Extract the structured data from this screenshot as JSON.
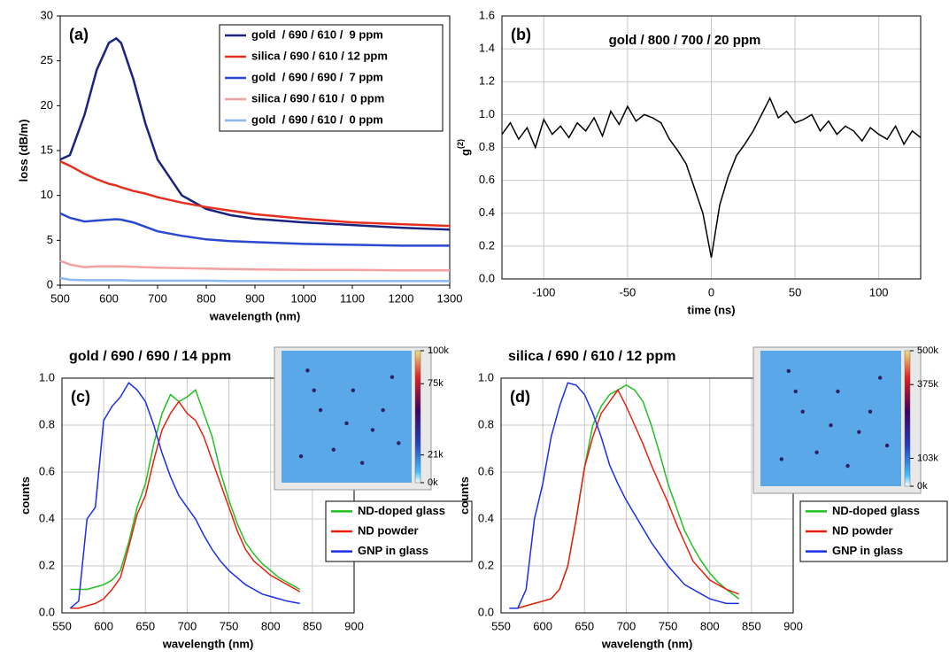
{
  "chart_data": [
    {
      "type": "line",
      "panel_label": "(a)",
      "x_label": "wavelength (nm)",
      "y_label": "loss (dB/m)",
      "xlim": [
        500,
        1300
      ],
      "ylim": [
        0,
        30
      ],
      "xticks": [
        500,
        600,
        700,
        800,
        900,
        1000,
        1100,
        1200,
        1300
      ],
      "yticks": [
        0,
        5,
        10,
        15,
        20,
        25,
        30
      ],
      "grid": false,
      "legend": "upper-right",
      "x": [
        500,
        520,
        550,
        575,
        600,
        615,
        625,
        650,
        675,
        700,
        750,
        800,
        850,
        900,
        1000,
        1100,
        1200,
        1300
      ],
      "series": [
        {
          "name": "gold  / 690 / 610 /  9 ppm",
          "color": "#1a237e",
          "values": [
            14,
            14.5,
            19,
            24,
            27,
            27.5,
            27,
            23,
            18,
            14,
            10,
            8.5,
            7.8,
            7.4,
            7,
            6.7,
            6.4,
            6.2
          ]
        },
        {
          "name": "silica / 690 / 610 / 12 ppm",
          "color": "#e53020",
          "values": [
            13.8,
            13.3,
            12.4,
            11.8,
            11.3,
            11.1,
            10.9,
            10.5,
            10.2,
            9.8,
            9.2,
            8.7,
            8.3,
            7.9,
            7.4,
            7,
            6.8,
            6.6
          ]
        },
        {
          "name": "gold  / 690 / 690 /  7 ppm",
          "color": "#2a48d0",
          "values": [
            8,
            7.5,
            7.1,
            7.2,
            7.3,
            7.35,
            7.3,
            7,
            6.5,
            6,
            5.5,
            5.1,
            4.9,
            4.8,
            4.6,
            4.5,
            4.4,
            4.4
          ]
        },
        {
          "name": "silica / 690 / 610 /  0 ppm",
          "color": "#f4a0a0",
          "values": [
            2.7,
            2.3,
            2.0,
            2.1,
            2.1,
            2.1,
            2.1,
            2.05,
            2.0,
            1.95,
            1.9,
            1.85,
            1.8,
            1.75,
            1.7,
            1.7,
            1.65,
            1.65
          ]
        },
        {
          "name": "gold  / 690 / 610 /  0 ppm",
          "color": "#8ab8f0",
          "values": [
            0.8,
            0.6,
            0.55,
            0.55,
            0.55,
            0.55,
            0.55,
            0.5,
            0.5,
            0.5,
            0.5,
            0.5,
            0.45,
            0.45,
            0.45,
            0.45,
            0.45,
            0.45
          ]
        }
      ]
    },
    {
      "type": "line",
      "panel_label": "(b)",
      "title": "gold / 800 / 700 / 20 ppm",
      "x_label": "time (ns)",
      "y_label": "g",
      "y_label_superscript": "(2)",
      "xlim": [
        -125,
        125
      ],
      "ylim": [
        0,
        1.6
      ],
      "xticks": [
        -100,
        -50,
        0,
        50,
        100
      ],
      "yticks": [
        {
          "value": 0,
          "label": "0.0"
        },
        {
          "value": 0.2,
          "label": "0.2"
        },
        {
          "value": 0.4,
          "label": "0.4"
        },
        {
          "value": 0.6,
          "label": "0.6"
        },
        {
          "value": 0.8,
          "label": "0.8"
        },
        {
          "value": 1,
          "label": "1.0"
        },
        {
          "value": 1.2,
          "label": "1.2"
        },
        {
          "value": 1.4,
          "label": "1.4"
        },
        {
          "value": 1.6,
          "label": "1.6"
        }
      ],
      "grid": true,
      "x": [
        -125,
        -120,
        -115,
        -110,
        -105,
        -100,
        -95,
        -90,
        -85,
        -80,
        -75,
        -70,
        -65,
        -60,
        -55,
        -50,
        -45,
        -40,
        -35,
        -30,
        -25,
        -20,
        -15,
        -10,
        -5,
        0,
        5,
        10,
        15,
        20,
        25,
        30,
        35,
        40,
        45,
        50,
        55,
        60,
        65,
        70,
        75,
        80,
        85,
        90,
        95,
        100,
        105,
        110,
        115,
        120,
        125
      ],
      "series": [
        {
          "color": "#000000",
          "values": [
            0.88,
            0.95,
            0.85,
            0.92,
            0.8,
            0.97,
            0.88,
            0.93,
            0.86,
            0.95,
            0.9,
            0.98,
            0.87,
            1.02,
            0.94,
            1.05,
            0.96,
            1.0,
            0.98,
            0.95,
            0.85,
            0.78,
            0.7,
            0.55,
            0.4,
            0.13,
            0.45,
            0.62,
            0.75,
            0.82,
            0.9,
            1.0,
            1.1,
            0.98,
            1.02,
            0.95,
            0.97,
            1.0,
            0.9,
            0.96,
            0.88,
            0.93,
            0.9,
            0.84,
            0.92,
            0.88,
            0.85,
            0.93,
            0.82,
            0.9,
            0.86
          ]
        }
      ]
    },
    {
      "type": "line",
      "panel_label": "(c)",
      "title": "gold / 690 / 690 / 14 ppm",
      "x_label": "wavelength (nm)",
      "y_label": "counts",
      "xlim": [
        550,
        900
      ],
      "ylim": [
        0,
        1
      ],
      "xticks": [
        550,
        600,
        650,
        700,
        750,
        800,
        850,
        900
      ],
      "yticks": [
        {
          "value": 0,
          "label": "0.0"
        },
        {
          "value": 0.2,
          "label": "0.2"
        },
        {
          "value": 0.4,
          "label": "0.4"
        },
        {
          "value": 0.6,
          "label": "0.6"
        },
        {
          "value": 0.8,
          "label": "0.8"
        },
        {
          "value": 1,
          "label": "1.0"
        }
      ],
      "grid": true,
      "legend": "lower-right",
      "inset": {
        "colorbar_lim": [
          0,
          100000
        ],
        "colorbar_ticks": [
          {
            "value": 100000,
            "label": "100k"
          },
          {
            "value": 75000,
            "label": "75k"
          },
          {
            "value": 21000,
            "label": "21k"
          },
          {
            "value": 0,
            "label": "0k"
          }
        ]
      },
      "x": [
        560,
        570,
        580,
        590,
        600,
        610,
        620,
        630,
        640,
        650,
        660,
        670,
        680,
        690,
        700,
        710,
        720,
        730,
        740,
        750,
        760,
        770,
        780,
        790,
        800,
        810,
        820,
        835
      ],
      "series": [
        {
          "name": "ND-doped glass",
          "color": "#22c020",
          "values": [
            0.1,
            0.1,
            0.1,
            0.11,
            0.12,
            0.14,
            0.18,
            0.3,
            0.45,
            0.55,
            0.72,
            0.85,
            0.93,
            0.9,
            0.92,
            0.95,
            0.85,
            0.75,
            0.6,
            0.48,
            0.38,
            0.3,
            0.25,
            0.21,
            0.18,
            0.15,
            0.13,
            0.1
          ]
        },
        {
          "name": "ND powder",
          "color": "#e82010",
          "values": [
            0.02,
            0.02,
            0.03,
            0.04,
            0.06,
            0.1,
            0.15,
            0.28,
            0.42,
            0.5,
            0.65,
            0.78,
            0.85,
            0.9,
            0.85,
            0.82,
            0.75,
            0.65,
            0.55,
            0.45,
            0.35,
            0.27,
            0.22,
            0.19,
            0.16,
            0.14,
            0.12,
            0.09
          ]
        },
        {
          "name": "GNP in glass",
          "color": "#1a2ee8",
          "values": [
            0.02,
            0.05,
            0.4,
            0.45,
            0.82,
            0.88,
            0.92,
            0.98,
            0.95,
            0.9,
            0.8,
            0.68,
            0.58,
            0.5,
            0.45,
            0.4,
            0.33,
            0.27,
            0.22,
            0.18,
            0.15,
            0.12,
            0.1,
            0.08,
            0.07,
            0.06,
            0.05,
            0.04
          ]
        }
      ]
    },
    {
      "type": "line",
      "panel_label": "(d)",
      "title": "silica / 690 / 610 / 12 ppm",
      "x_label": "wavelength (nm)",
      "y_label": "counts",
      "xlim": [
        550,
        900
      ],
      "ylim": [
        0,
        1
      ],
      "xticks": [
        550,
        600,
        650,
        700,
        750,
        800,
        850,
        900
      ],
      "yticks": [
        {
          "value": 0,
          "label": "0.0"
        },
        {
          "value": 0.2,
          "label": "0.2"
        },
        {
          "value": 0.4,
          "label": "0.4"
        },
        {
          "value": 0.6,
          "label": "0.6"
        },
        {
          "value": 0.8,
          "label": "0.8"
        },
        {
          "value": 1,
          "label": "1.0"
        }
      ],
      "grid": true,
      "legend": "lower-right",
      "inset": {
        "colorbar_lim": [
          0,
          500000
        ],
        "colorbar_ticks": [
          {
            "value": 500000,
            "label": "500k"
          },
          {
            "value": 375000,
            "label": "375k"
          },
          {
            "value": 103000,
            "label": "103k"
          },
          {
            "value": 0,
            "label": "0k"
          }
        ]
      },
      "x": [
        560,
        570,
        580,
        590,
        600,
        610,
        620,
        630,
        640,
        650,
        660,
        670,
        680,
        690,
        700,
        710,
        720,
        730,
        740,
        750,
        760,
        770,
        780,
        790,
        800,
        810,
        820,
        835
      ],
      "series": [
        {
          "name": "ND-doped glass",
          "color": "#22c020",
          "values": [
            0.02,
            0.02,
            0.03,
            0.04,
            0.05,
            0.06,
            0.1,
            0.2,
            0.4,
            0.62,
            0.8,
            0.88,
            0.93,
            0.95,
            0.97,
            0.95,
            0.9,
            0.8,
            0.68,
            0.55,
            0.45,
            0.35,
            0.28,
            0.22,
            0.17,
            0.13,
            0.1,
            0.06
          ]
        },
        {
          "name": "ND powder",
          "color": "#e82010",
          "values": [
            0.02,
            0.02,
            0.03,
            0.04,
            0.05,
            0.06,
            0.1,
            0.2,
            0.4,
            0.62,
            0.75,
            0.85,
            0.9,
            0.95,
            0.88,
            0.8,
            0.72,
            0.63,
            0.55,
            0.47,
            0.38,
            0.3,
            0.22,
            0.18,
            0.14,
            0.12,
            0.1,
            0.08
          ]
        },
        {
          "name": "GNP in glass",
          "color": "#1a2ee8",
          "values": [
            0.02,
            0.02,
            0.1,
            0.4,
            0.55,
            0.75,
            0.88,
            0.98,
            0.97,
            0.93,
            0.85,
            0.75,
            0.63,
            0.55,
            0.48,
            0.42,
            0.36,
            0.3,
            0.25,
            0.2,
            0.16,
            0.12,
            0.1,
            0.08,
            0.06,
            0.05,
            0.04,
            0.04
          ]
        }
      ]
    }
  ]
}
